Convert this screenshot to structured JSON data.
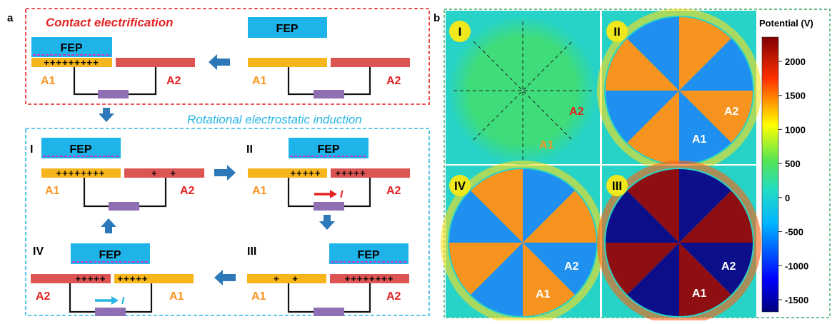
{
  "panel_a": {
    "label": "a",
    "top_title": "Contact electrification",
    "bottom_title": "Rotational electrostatic induction",
    "fep": "FEP",
    "electrode_1": "A1",
    "electrode_2": "A2",
    "current": "I",
    "contact_charges": "+++++++++",
    "stages": [
      {
        "roman": "I",
        "left_charges": "++++++++",
        "right_charges": "+   +"
      },
      {
        "roman": "II",
        "left_charges": "+++++",
        "right_charges": "+++++"
      },
      {
        "roman": "III",
        "left_charges": "+   +",
        "right_charges": "++++++++"
      },
      {
        "roman": "IV",
        "left_charges": "+++++",
        "right_charges": "+++++"
      }
    ]
  },
  "panel_b": {
    "label": "b",
    "sims": [
      {
        "roman": "I",
        "a1": "A1",
        "a2": "A2"
      },
      {
        "roman": "II",
        "a1": "A1",
        "a2": "A2"
      },
      {
        "roman": "IV",
        "a1": "A1",
        "a2": "A2"
      },
      {
        "roman": "III",
        "a1": "A1",
        "a2": "A2"
      }
    ],
    "colorbar": {
      "title": "Potential (V)",
      "ticks": [
        "2000",
        "1500",
        "1000",
        "500",
        "0",
        "-500",
        "-1000",
        "-1500"
      ]
    }
  },
  "colors": {
    "fep_blue": "#1eb4ea",
    "a1_yellow": "#f7b51c",
    "a2_red": "#dc5553",
    "resistor_purple": "#8e6fb3",
    "arrow_blue": "#2c78b8",
    "title_red": "#e52222",
    "title_cyan": "#29b6e6",
    "bg_green": "#3fdc7a",
    "bg_cyan": "#27d3c6",
    "sector_orange": "#f7941f",
    "sector_blue": "#1f8ff0",
    "sector_darkred": "#8f0e12",
    "sector_navy": "#0d0e8a"
  }
}
